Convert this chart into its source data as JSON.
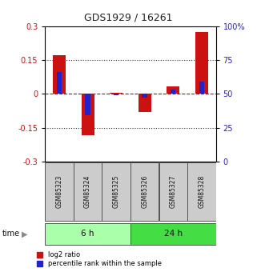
{
  "title": "GDS1929 / 16261",
  "samples": [
    "GSM85323",
    "GSM85324",
    "GSM85325",
    "GSM85326",
    "GSM85327",
    "GSM85328"
  ],
  "log2_ratio": [
    0.172,
    -0.183,
    0.003,
    -0.082,
    0.032,
    0.275
  ],
  "percentile_rank": [
    66,
    34,
    49,
    47,
    53,
    59
  ],
  "groups": [
    {
      "label": "6 h",
      "color": "#aaffaa",
      "light_color": "#ccffcc"
    },
    {
      "label": "24 h",
      "color": "#44dd44",
      "light_color": "#44dd44"
    }
  ],
  "ylim_left": [
    -0.3,
    0.3
  ],
  "ylim_right": [
    0,
    100
  ],
  "yticks_left": [
    -0.3,
    -0.15,
    0,
    0.15,
    0.3
  ],
  "ytick_labels_left": [
    "-0.3",
    "-0.15",
    "0",
    "0.15",
    "0.3"
  ],
  "yticks_right": [
    0,
    25,
    50,
    75,
    100
  ],
  "ytick_labels_right": [
    "0",
    "25",
    "50",
    "75",
    "100%"
  ],
  "red_color": "#cc1111",
  "blue_color": "#2222cc",
  "bg_color": "#ffffff",
  "zero_line_color": "#cc0000",
  "sample_bg": "#cccccc",
  "legend_red_label": "log2 ratio",
  "legend_blue_label": "percentile rank within the sample"
}
